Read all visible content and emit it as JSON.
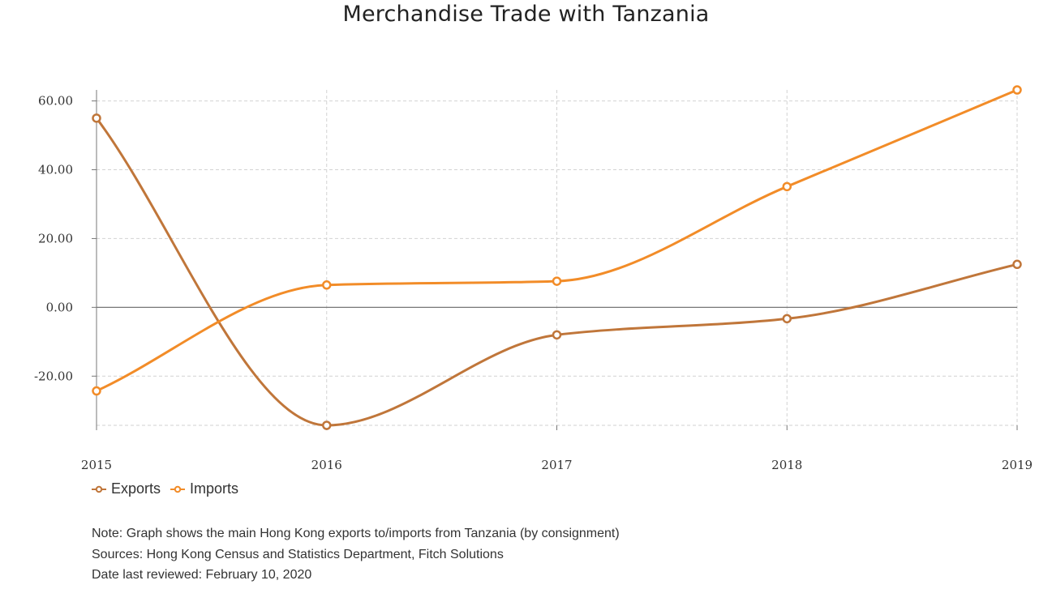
{
  "chart_data": {
    "type": "line",
    "title": "Merchandise Trade with Tanzania",
    "xlabel": "",
    "ylabel": "",
    "categories": [
      "2015",
      "2016",
      "2017",
      "2018",
      "2019"
    ],
    "series": [
      {
        "name": "Exports",
        "color": "#c0763a",
        "values": [
          55.0,
          -34.3,
          -8.0,
          -3.3,
          12.5
        ]
      },
      {
        "name": "Imports",
        "color": "#f28c28",
        "values": [
          -24.3,
          6.5,
          7.6,
          35.1,
          63.2
        ]
      }
    ],
    "yticks": [
      -20,
      0,
      20,
      40,
      60
    ],
    "ytick_labels": [
      "-20.00",
      "0.00",
      "20.00",
      "40.00",
      "60.00"
    ],
    "ylim": [
      -34.3,
      63.2
    ],
    "grid": true,
    "legend_position": "bottom-left"
  },
  "notes": {
    "note": "Note: Graph shows the main Hong Kong exports to/imports from Tanzania (by consignment)",
    "sources": "Sources: Hong Kong Census and Statistics Department, Fitch Solutions",
    "reviewed": "Date last reviewed: February 10, 2020"
  }
}
